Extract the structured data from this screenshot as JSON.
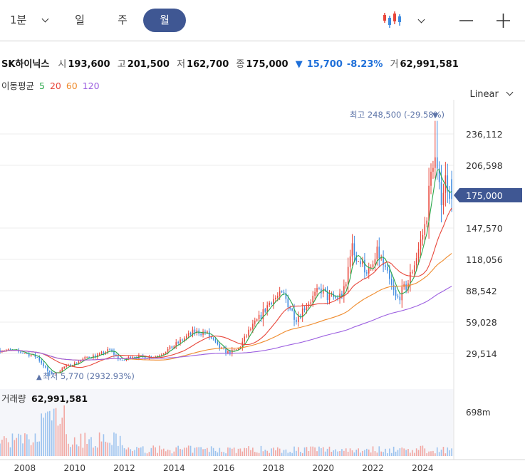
{
  "toolbar": {
    "interval_label": "1분",
    "periods": [
      {
        "label": "일",
        "active": false
      },
      {
        "label": "주",
        "active": false
      },
      {
        "label": "월",
        "active": true
      }
    ],
    "chart_type_icon": "candlestick-icon",
    "zoom_out_icon": "minus-icon",
    "zoom_in_icon": "plus-icon"
  },
  "quote": {
    "name": "SK하이닉스",
    "open_label": "시",
    "open": "193,600",
    "high_label": "고",
    "high": "201,500",
    "low_label": "저",
    "low": "162,700",
    "close_label": "종",
    "close": "175,000",
    "change": "15,700",
    "change_pct": "-8.23%",
    "volume_label": "거",
    "volume": "62,991,581"
  },
  "moving_average": {
    "label": "이동평균",
    "periods": [
      {
        "label": "5",
        "color": "#2aa74a"
      },
      {
        "label": "20",
        "color": "#e8473b"
      },
      {
        "label": "60",
        "color": "#ef8b2c"
      },
      {
        "label": "120",
        "color": "#9c5fe0"
      }
    ]
  },
  "scale": {
    "label": "Linear"
  },
  "annotations": {
    "high": "최고 248,500 (-29.58%)",
    "low": "최저 5,770 (2932.93%)"
  },
  "price_axis": {
    "ticks": [
      "236,112",
      "206,598",
      "147,570",
      "118,056",
      "88,542",
      "59,028",
      "29,514"
    ],
    "current": "175,000"
  },
  "volume_panel": {
    "label": "거래량",
    "value": "62,991,581",
    "tick": "698m"
  },
  "time_axis": {
    "ticks": [
      "2008",
      "2010",
      "2012",
      "2014",
      "2016",
      "2018",
      "2020",
      "2022",
      "2024"
    ]
  },
  "colors": {
    "up": "#e8473b",
    "down": "#3d8ae0",
    "accent": "#3f5793"
  },
  "chart_data": {
    "type": "candlestick",
    "interval": "monthly",
    "x_range": [
      "2007-01",
      "2025-03"
    ],
    "y_range": [
      0,
      265000
    ],
    "anchors_year_close": [
      [
        2007.0,
        33000
      ],
      [
        2007.5,
        32000
      ],
      [
        2008.0,
        30000
      ],
      [
        2008.5,
        26000
      ],
      [
        2008.95,
        12000
      ],
      [
        2009.2,
        10000
      ],
      [
        2009.6,
        17000
      ],
      [
        2010.0,
        20000
      ],
      [
        2010.5,
        26000
      ],
      [
        2011.0,
        28000
      ],
      [
        2011.4,
        33000
      ],
      [
        2011.9,
        22000
      ],
      [
        2012.3,
        27000
      ],
      [
        2012.9,
        26000
      ],
      [
        2013.3,
        27000
      ],
      [
        2013.9,
        35000
      ],
      [
        2014.3,
        42000
      ],
      [
        2014.8,
        50000
      ],
      [
        2015.3,
        49000
      ],
      [
        2015.8,
        35000
      ],
      [
        2016.2,
        30000
      ],
      [
        2016.6,
        34000
      ],
      [
        2017.0,
        50000
      ],
      [
        2017.5,
        65000
      ],
      [
        2017.9,
        80000
      ],
      [
        2018.4,
        85000
      ],
      [
        2018.9,
        62000
      ],
      [
        2019.3,
        75000
      ],
      [
        2019.9,
        90000
      ],
      [
        2020.2,
        82000
      ],
      [
        2020.6,
        82000
      ],
      [
        2020.9,
        90000
      ],
      [
        2021.1,
        130000
      ],
      [
        2021.5,
        115000
      ],
      [
        2021.9,
        105000
      ],
      [
        2022.2,
        125000
      ],
      [
        2022.7,
        95000
      ],
      [
        2022.95,
        80000
      ],
      [
        2023.4,
        95000
      ],
      [
        2023.8,
        125000
      ],
      [
        2024.1,
        150000
      ],
      [
        2024.45,
        220000
      ],
      [
        2024.7,
        175000
      ],
      [
        2024.95,
        195000
      ],
      [
        2025.2,
        175000
      ]
    ],
    "last_candle": {
      "open": 193600,
      "high": 201500,
      "low": 162700,
      "close": 175000,
      "volume": 62991581
    },
    "all_time_high": 248500,
    "all_time_low": 5770,
    "volume_tick": "698m"
  }
}
